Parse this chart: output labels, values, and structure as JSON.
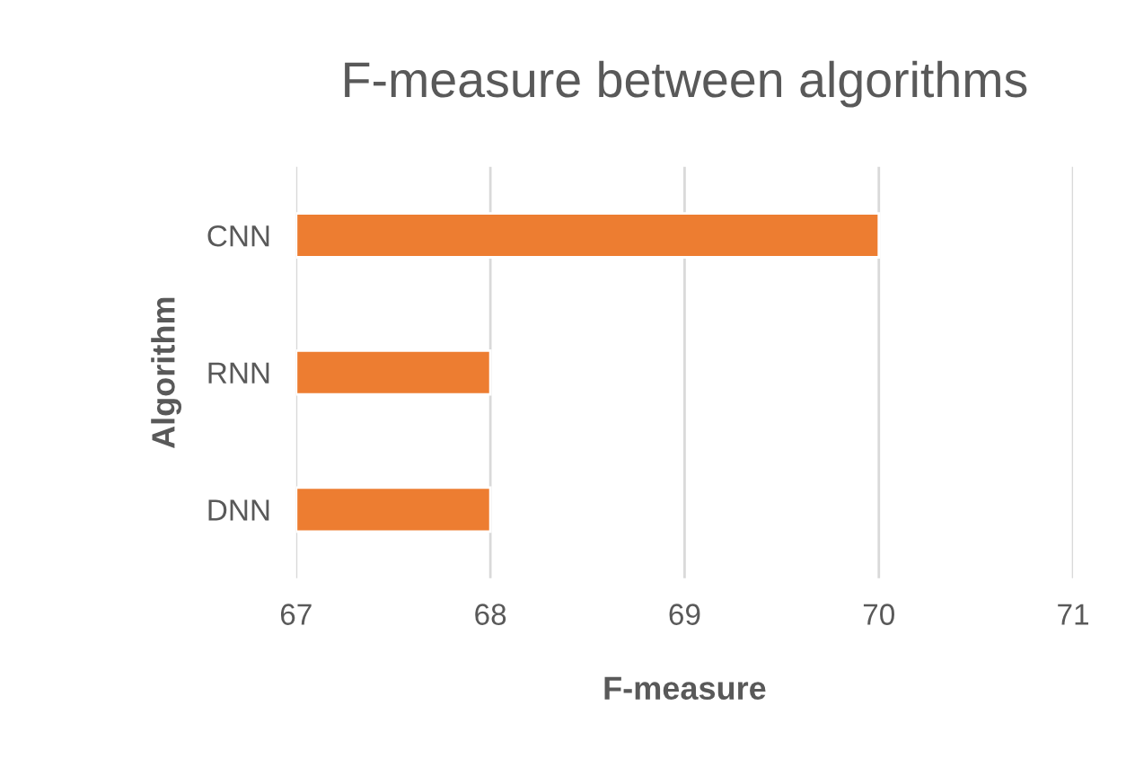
{
  "chart_data": {
    "type": "bar",
    "orientation": "horizontal",
    "title": "F-measure between algorithms",
    "xlabel": "F-measure",
    "ylabel": "Algorithm",
    "categories": [
      "CNN",
      "RNN",
      "DNN"
    ],
    "values": [
      70,
      68,
      68
    ],
    "color": "#ed7d31",
    "xlim": [
      67,
      71
    ],
    "xticks": [
      67,
      68,
      69,
      70,
      71
    ],
    "grid": "x"
  }
}
